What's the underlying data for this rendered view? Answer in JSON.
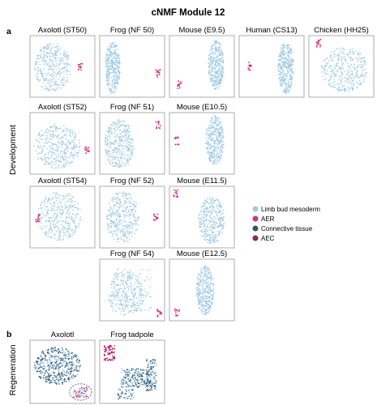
{
  "figure": {
    "title": "cNMF Module 12",
    "panel_a_letter": "a",
    "panel_b_letter": "b",
    "row_label_a": "Development",
    "row_label_b": "Regeneration"
  },
  "legend": {
    "position": "right",
    "items": [
      {
        "label": "Limb bud mesoderm",
        "color": "#9dc9e6"
      },
      {
        "label": "AER",
        "color": "#d6317a"
      },
      {
        "label": "Connective tissue",
        "color": "#2f5570"
      },
      {
        "label": "AEC",
        "color": "#8e2a4a"
      }
    ]
  },
  "chart_data": {
    "type": "scatter",
    "description_of_axes": "UMAP embeddings without printed axes; one panel per species and stage",
    "panels_development": [
      {
        "label": "Axolotl (ST50)",
        "cluster_shape": "blob",
        "highlight": "AER"
      },
      {
        "label": "Frog (NF 50)",
        "cluster_shape": "tall",
        "highlight": "AER"
      },
      {
        "label": "Mouse (E9.5)",
        "cluster_shape": "tall",
        "highlight": "AER"
      },
      {
        "label": "Human (CS13)",
        "cluster_shape": "tall",
        "highlight": "AER"
      },
      {
        "label": "Chicken (HH25)",
        "cluster_shape": "round",
        "highlight": "AER"
      },
      {
        "label": "Axolotl (ST52)",
        "cluster_shape": "blob",
        "highlight": "AER"
      },
      {
        "label": "Frog (NF 51)",
        "cluster_shape": "tall",
        "highlight": "AER"
      },
      {
        "label": "Mouse (E10.5)",
        "cluster_shape": "tall",
        "highlight": "AER"
      },
      {
        "label": "Axolotl (ST54)",
        "cluster_shape": "blob",
        "highlight": "AER"
      },
      {
        "label": "Frog (NF 52)",
        "cluster_shape": "tall",
        "highlight": "AER"
      },
      {
        "label": "Mouse (E11.5)",
        "cluster_shape": "tall",
        "highlight": "AER"
      },
      {
        "label": "Frog (NF 54)",
        "cluster_shape": "scattered",
        "highlight": "AER"
      },
      {
        "label": "Mouse (E12.5)",
        "cluster_shape": "tall",
        "highlight": "AER"
      }
    ],
    "panels_regeneration": [
      {
        "label": "Axolotl",
        "cell_types": [
          "Connective tissue",
          "AEC"
        ],
        "highlight_circled": true
      },
      {
        "label": "Frog tadpole",
        "cell_types": [
          "Connective tissue",
          "AEC"
        ],
        "highlight_circled": false
      }
    ]
  }
}
